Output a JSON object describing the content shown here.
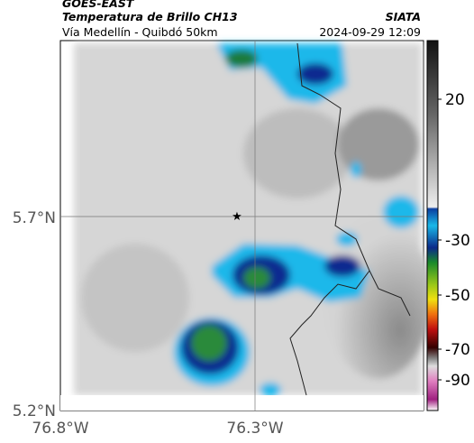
{
  "header": {
    "source": "GOES-EAST",
    "product": "Temperatura de Brillo CH13",
    "route": "Vía Medellín - Quibdó 50km",
    "agency": "SIATA",
    "timestamp": "2024-09-29 12:09"
  },
  "map": {
    "lat_labels": [
      "5.7°N",
      "5.2°N"
    ],
    "lon_labels": [
      "76.8°W",
      "76.3°W"
    ]
  },
  "colorbar": {
    "tick_labels": [
      20,
      -30,
      -50,
      -70,
      -90
    ]
  }
}
